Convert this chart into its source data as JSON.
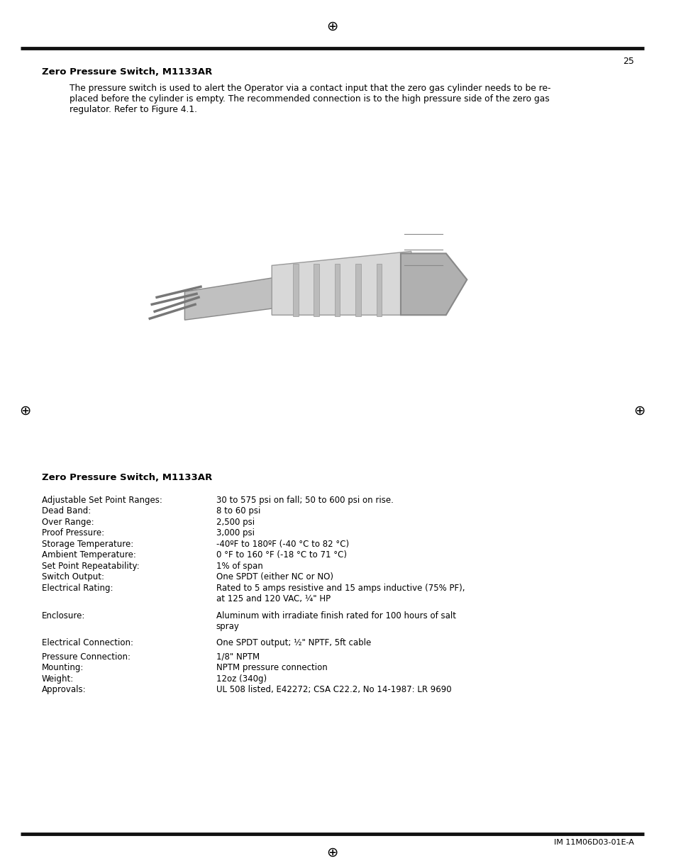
{
  "page_number": "25",
  "top_symbol": "⊕",
  "left_symbol": "⊕",
  "right_symbol": "⊕",
  "bottom_symbol": "⊕",
  "section_title_1": "Zero Pressure Switch, M1133AR",
  "intro_text": "The pressure switch is used to alert the Operator via a contact input that the zero gas cylinder needs to be re-\nplaced before the cylinder is empty. The recommended connection is to the high pressure side of the zero gas\nregulator. Refer to Figure 4.1.",
  "section_title_2": "Zero Pressure Switch, M1133AR",
  "specs": [
    [
      "Adjustable Set Point Ranges:",
      "30 to 575 psi on fall; 50 to 600 psi on rise."
    ],
    [
      "Dead Band:",
      "8 to 60 psi"
    ],
    [
      "Over Range:",
      "2,500 psi"
    ],
    [
      "Proof Pressure:",
      "3,000 psi"
    ],
    [
      "Storage Temperature:",
      "-40ºF to 180ºF (-40 °C to 82 °C)"
    ],
    [
      "Ambient Temperature:",
      "0 °F to 160 °F (-18 °C to 71 °C)"
    ],
    [
      "Set Point Repeatability:",
      "1% of span"
    ],
    [
      "Switch Output:",
      "One SPDT (either NC or NO)"
    ],
    [
      "Electrical Rating:",
      "Rated to 5 amps resistive and 15 amps inductive (75% PF),\nat 125 and 120 VAC, ¼\" HP"
    ],
    [
      "Enclosure:",
      "Aluminum with irradiate finish rated for 100 hours of salt\nspray"
    ],
    [
      "Electrical Connection:",
      "One SPDT output; ½\" NPTF, 5ft cable"
    ],
    [
      "Pressure Connection:",
      "1/8\" NPTM"
    ],
    [
      "Mounting:",
      "NPTM pressure connection"
    ],
    [
      "Weight:",
      "12oz (340g)"
    ],
    [
      "Approvals:",
      "UL 508 listed, E42272; CSA C22.2, No 14-1987: LR 9690"
    ]
  ],
  "footer_text": "IM 11M06D03-01E-A",
  "bg_color": "#ffffff",
  "text_color": "#000000",
  "line_color": "#000000"
}
